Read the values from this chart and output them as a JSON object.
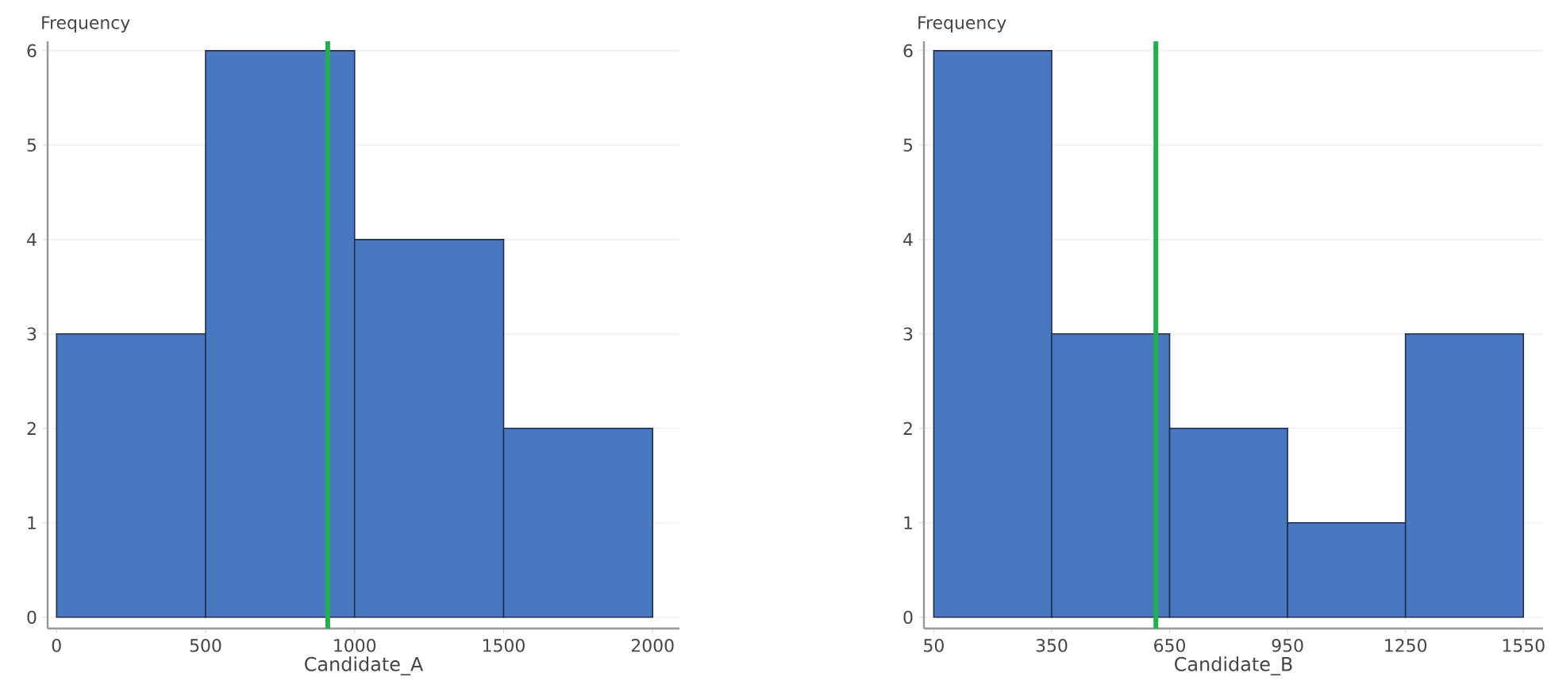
{
  "chart_data": [
    {
      "type": "histogram",
      "xlabel": "Candidate_A",
      "ylabel": "Frequency",
      "bins": [
        0,
        500,
        1000,
        1500,
        2000
      ],
      "values": [
        3,
        6,
        4,
        2
      ],
      "color": "#4a78c0",
      "xlim": [
        -30,
        2090
      ],
      "ylim": [
        -0.12,
        6.1
      ],
      "xticks": [
        0,
        500,
        1000,
        1500,
        2000
      ],
      "yticks": [
        0,
        1,
        2,
        3,
        4,
        5,
        6
      ],
      "grid": "y",
      "ref_lines": [
        {
          "axis": "x",
          "value": 910,
          "color": "#22b04c"
        }
      ]
    },
    {
      "type": "histogram",
      "xlabel": "Candidate_B",
      "ylabel": "Frequency",
      "bins": [
        50,
        350,
        650,
        950,
        1250,
        1550
      ],
      "values": [
        6,
        3,
        2,
        1,
        3
      ],
      "color": "#4a78c0",
      "xlim": [
        25,
        1600
      ],
      "ylim": [
        -0.12,
        6.1
      ],
      "xticks": [
        50,
        350,
        650,
        950,
        1250,
        1550
      ],
      "yticks": [
        0,
        1,
        2,
        3,
        4,
        5,
        6
      ],
      "grid": "y",
      "ref_lines": [
        {
          "axis": "x",
          "value": 615,
          "color": "#22b04c"
        }
      ]
    }
  ]
}
